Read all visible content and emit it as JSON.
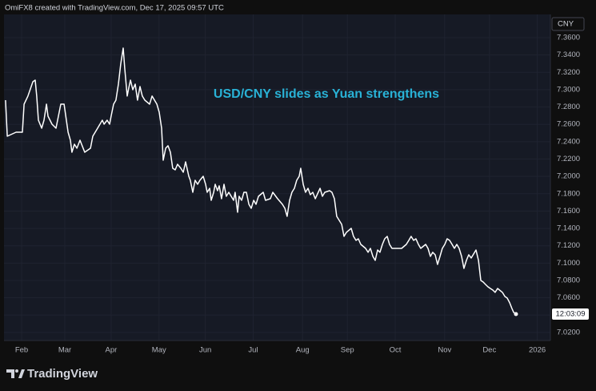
{
  "chart_data": {
    "type": "line",
    "title": "OmiFX8 created with TradingView.com, Dec 17, 2025 09:57 UTC",
    "annotation": "USD/CNY slides as Yuan strengthens",
    "currency": "CNY",
    "countdown": "12:03:09",
    "brand": "TradingView",
    "color": "#ffffff",
    "annotation_color": "#29b2d6",
    "grid": true,
    "xlim": [
      -11.4,
      342.5
    ],
    "xticks": [
      {
        "value": 0,
        "label": "Feb"
      },
      {
        "value": 28,
        "label": "Mar"
      },
      {
        "value": 58,
        "label": "Apr"
      },
      {
        "value": 89,
        "label": "May"
      },
      {
        "value": 119,
        "label": "Jun"
      },
      {
        "value": 150,
        "label": "Jul"
      },
      {
        "value": 182,
        "label": "Aug"
      },
      {
        "value": 211,
        "label": "Sep"
      },
      {
        "value": 242,
        "label": "Oct"
      },
      {
        "value": 274,
        "label": "Nov"
      },
      {
        "value": 303,
        "label": "Dec"
      },
      {
        "value": 334,
        "label": "2026"
      }
    ],
    "ylim": [
      7.0107,
      7.3868
    ],
    "yticks": [
      {
        "value": 7.36,
        "label": "7.3600"
      },
      {
        "value": 7.34,
        "label": "7.3400"
      },
      {
        "value": 7.32,
        "label": "7.3200"
      },
      {
        "value": 7.3,
        "label": "7.3000"
      },
      {
        "value": 7.28,
        "label": "7.2800"
      },
      {
        "value": 7.26,
        "label": "7.2600"
      },
      {
        "value": 7.24,
        "label": "7.2400"
      },
      {
        "value": 7.22,
        "label": "7.2200"
      },
      {
        "value": 7.2,
        "label": "7.2000"
      },
      {
        "value": 7.18,
        "label": "7.1800"
      },
      {
        "value": 7.16,
        "label": "7.1600"
      },
      {
        "value": 7.14,
        "label": "7.1400"
      },
      {
        "value": 7.12,
        "label": "7.1200"
      },
      {
        "value": 7.1,
        "label": "7.1000"
      },
      {
        "value": 7.08,
        "label": "7.0800"
      },
      {
        "value": 7.06,
        "label": "7.0600"
      },
      {
        "value": 7.04,
        "label": "7.0400"
      },
      {
        "value": 7.02,
        "label": "7.0200"
      }
    ],
    "x": [
      -10.4,
      -9.3,
      -3.6,
      0.5,
      1.6,
      4.1,
      7.3,
      8.8,
      9.8,
      10.9,
      13.0,
      14.5,
      16.1,
      17.1,
      19.7,
      22.3,
      25.4,
      27.5,
      30.1,
      31.6,
      32.6,
      34.2,
      35.8,
      37.8,
      40.9,
      44.6,
      46.1,
      49.2,
      52.3,
      53.4,
      55.4,
      57.0,
      58.0,
      59.6,
      61.1,
      62.7,
      64.2,
      65.8,
      66.8,
      68.4,
      69.4,
      70.5,
      72.0,
      73.6,
      75.1,
      76.7,
      78.2,
      79.8,
      82.9,
      84.5,
      87.6,
      89.1,
      90.7,
      91.7,
      93.3,
      94.8,
      96.4,
      97.9,
      99.5,
      101.0,
      103.1,
      104.7,
      106.2,
      108.3,
      109.3,
      110.9,
      112.4,
      114.0,
      115.5,
      117.6,
      119.2,
      120.2,
      121.8,
      122.8,
      124.4,
      125.4,
      126.9,
      128.0,
      129.5,
      131.1,
      132.6,
      134.2,
      137.3,
      138.3,
      139.9,
      140.9,
      142.5,
      144.0,
      145.6,
      147.2,
      148.7,
      150.3,
      151.8,
      153.4,
      156.5,
      158.0,
      161.1,
      162.7,
      165.8,
      168.9,
      170.5,
      172.0,
      173.6,
      175.1,
      176.7,
      178.2,
      179.8,
      180.8,
      182.4,
      183.9,
      185.5,
      187.0,
      188.6,
      190.2,
      193.3,
      194.8,
      196.4,
      199.5,
      201.0,
      202.6,
      204.1,
      205.7,
      207.3,
      208.8,
      210.4,
      213.5,
      215.0,
      216.6,
      218.1,
      219.7,
      222.8,
      224.4,
      225.9,
      227.5,
      229.0,
      230.6,
      232.1,
      233.7,
      235.2,
      236.8,
      238.3,
      239.9,
      246.1,
      249.2,
      250.8,
      252.3,
      253.9,
      255.4,
      257.0,
      258.5,
      261.7,
      263.2,
      264.8,
      266.3,
      267.9,
      269.4,
      271.0,
      272.5,
      274.1,
      275.6,
      277.2,
      278.8,
      280.3,
      281.9,
      283.4,
      285.0,
      286.5,
      288.1,
      289.6,
      291.2,
      294.3,
      295.9,
      297.4,
      299.0,
      300.5,
      302.1,
      303.6,
      305.2,
      306.7,
      308.3,
      311.4,
      313.0,
      314.5,
      316.1,
      317.6,
      318.7,
      320.2
    ],
    "values": [
      7.2879,
      7.2463,
      7.251,
      7.251,
      7.2833,
      7.2926,
      7.3092,
      7.311,
      7.2926,
      7.2648,
      7.2556,
      7.2648,
      7.2833,
      7.2694,
      7.2602,
      7.2556,
      7.2833,
      7.2833,
      7.251,
      7.2417,
      7.2279,
      7.2371,
      7.2325,
      7.2417,
      7.2279,
      7.2325,
      7.2463,
      7.2556,
      7.2648,
      7.2602,
      7.2648,
      7.2602,
      7.2694,
      7.2833,
      7.2879,
      7.3064,
      7.3295,
      7.348,
      7.3249,
      7.2926,
      7.3018,
      7.311,
      7.2999,
      7.3064,
      7.2879,
      7.3036,
      7.2926,
      7.2879,
      7.2833,
      7.2926,
      7.2833,
      7.2741,
      7.2556,
      7.2186,
      7.2325,
      7.2353,
      7.2279,
      7.2094,
      7.2075,
      7.214,
      7.2094,
      7.2048,
      7.2168,
      7.2001,
      7.1955,
      7.1817,
      7.1955,
      7.1909,
      7.1955,
      7.2001,
      7.1909,
      7.1817,
      7.1863,
      7.1724,
      7.1817,
      7.1909,
      7.1835,
      7.1891,
      7.1743,
      7.1909,
      7.177,
      7.1817,
      7.1724,
      7.1817,
      7.1586,
      7.177,
      7.1724,
      7.1817,
      7.1817,
      7.1678,
      7.1632,
      7.1724,
      7.1678,
      7.177,
      7.1817,
      7.1724,
      7.1743,
      7.1817,
      7.1743,
      7.1678,
      7.1632,
      7.1539,
      7.1724,
      7.1817,
      7.1863,
      7.1955,
      7.2001,
      7.2094,
      7.1909,
      7.1817,
      7.1863,
      7.1789,
      7.1817,
      7.1743,
      7.1863,
      7.177,
      7.1817,
      7.1835,
      7.1817,
      7.1743,
      7.1539,
      7.1493,
      7.1447,
      7.1308,
      7.1355,
      7.1401,
      7.1308,
      7.1262,
      7.1281,
      7.1216,
      7.117,
      7.1124,
      7.117,
      7.1077,
      7.1031,
      7.1151,
      7.1124,
      7.1216,
      7.1281,
      7.1308,
      7.1216,
      7.117,
      7.117,
      7.1216,
      7.1262,
      7.1308,
      7.1262,
      7.1281,
      7.1216,
      7.117,
      7.1216,
      7.117,
      7.1077,
      7.1124,
      7.1096,
      7.0985,
      7.1077,
      7.117,
      7.1216,
      7.1281,
      7.1262,
      7.1216,
      7.117,
      7.1216,
      7.117,
      7.1077,
      7.0939,
      7.1031,
      7.1096,
      7.1059,
      7.1151,
      7.1031,
      7.08,
      7.0782,
      7.0754,
      7.0726,
      7.0708,
      7.0689,
      7.0662,
      7.0708,
      7.0662,
      7.0615,
      7.0597,
      7.0542,
      7.0477,
      7.0431,
      7.0412
    ]
  }
}
